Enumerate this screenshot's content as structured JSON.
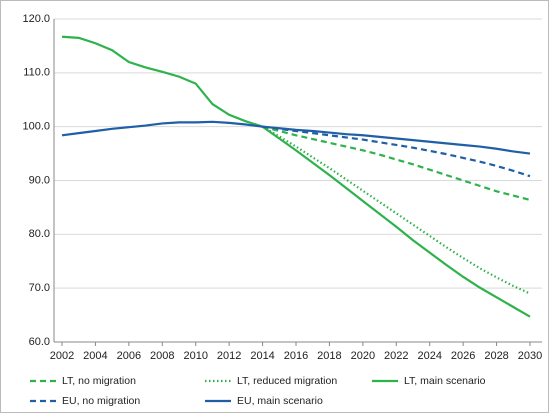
{
  "chart_data": {
    "type": "line",
    "x": [
      2002,
      2003,
      2004,
      2005,
      2006,
      2007,
      2008,
      2009,
      2010,
      2011,
      2012,
      2013,
      2014,
      2015,
      2016,
      2017,
      2018,
      2019,
      2020,
      2021,
      2022,
      2023,
      2024,
      2025,
      2026,
      2027,
      2028,
      2029,
      2030
    ],
    "xlim": [
      2002,
      2030
    ],
    "xticks": [
      2002,
      2004,
      2006,
      2008,
      2010,
      2012,
      2014,
      2016,
      2018,
      2020,
      2022,
      2024,
      2026,
      2028,
      2030
    ],
    "ylim": [
      60,
      120
    ],
    "yticks": [
      {
        "value": 60,
        "label": "60.0"
      },
      {
        "value": 70,
        "label": "70.0"
      },
      {
        "value": 80,
        "label": "80.0"
      },
      {
        "value": 90,
        "label": "90.0"
      },
      {
        "value": 100,
        "label": "100.0"
      },
      {
        "value": 110,
        "label": "110.0"
      },
      {
        "value": 120,
        "label": "120.0"
      }
    ],
    "grid": true,
    "series": [
      {
        "name": "LT, no migration",
        "color": "#2eb24b",
        "dash": "dashed",
        "values": [
          null,
          null,
          null,
          null,
          null,
          null,
          null,
          null,
          null,
          null,
          null,
          null,
          100,
          99.2,
          98.4,
          97.7,
          97,
          96.3,
          95.6,
          94.8,
          93.9,
          93,
          92,
          91,
          90,
          89,
          88,
          87.2,
          86.4
        ]
      },
      {
        "name": "LT, reduced migration",
        "color": "#2eb24b",
        "dash": "dotted",
        "values": [
          null,
          null,
          null,
          null,
          null,
          null,
          null,
          null,
          null,
          null,
          null,
          null,
          100,
          98.2,
          96.3,
          94.3,
          92.3,
          90.2,
          88.1,
          86,
          83.9,
          81.8,
          79.7,
          77.6,
          75.6,
          73.7,
          72,
          70.4,
          69
        ]
      },
      {
        "name": "LT, main scenario",
        "color": "#2eb24b",
        "dash": "solid",
        "values": [
          116.7,
          116.5,
          115.5,
          114.2,
          112,
          111,
          110.2,
          109.3,
          108,
          104.2,
          102.2,
          101,
          100,
          97.8,
          95.6,
          93.3,
          91,
          88.6,
          86.2,
          83.8,
          81.4,
          78.9,
          76.6,
          74.3,
          72.1,
          70.1,
          68.3,
          66.5,
          64.7
        ]
      },
      {
        "name": "EU, no migration",
        "color": "#1f5fa8",
        "dash": "dashed",
        "values": [
          null,
          null,
          null,
          null,
          null,
          null,
          null,
          null,
          null,
          null,
          null,
          null,
          100,
          99.6,
          99.2,
          98.8,
          98.4,
          98,
          97.6,
          97.1,
          96.6,
          96.1,
          95.5,
          94.9,
          94.2,
          93.5,
          92.7,
          91.8,
          90.8
        ]
      },
      {
        "name": "EU, main scenario",
        "color": "#1f5fa8",
        "dash": "solid",
        "values": [
          98.4,
          98.8,
          99.2,
          99.6,
          99.9,
          100.2,
          100.6,
          100.8,
          100.8,
          100.9,
          100.7,
          100.4,
          100,
          99.7,
          99.4,
          99.2,
          98.9,
          98.6,
          98.4,
          98.1,
          97.8,
          97.5,
          97.2,
          96.9,
          96.6,
          96.3,
          95.9,
          95.4,
          95
        ]
      }
    ]
  }
}
